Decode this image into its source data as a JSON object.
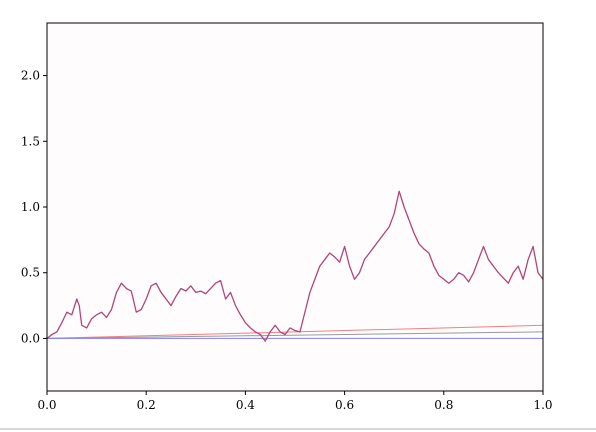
{
  "chart_data": {
    "type": "line",
    "title": "",
    "xlabel": "",
    "ylabel": "",
    "xlim": [
      0.0,
      1.0
    ],
    "ylim": [
      -0.4,
      2.4
    ],
    "grid": false,
    "x_ticks": [
      "0.0",
      "0.2",
      "0.4",
      "0.6",
      "0.8",
      "1.0"
    ],
    "y_ticks": [
      "0.0",
      "0.5",
      "1.0",
      "1.5",
      "2.0"
    ],
    "colors": {
      "background": "#fffcfd",
      "path": "#b0457a",
      "upper": "#f08080",
      "middle": "#999999",
      "lower": "#8080f0"
    },
    "series": [
      {
        "color": "#b0457a",
        "x": [
          0.0,
          0.01,
          0.02,
          0.03,
          0.04,
          0.05,
          0.06,
          0.065,
          0.07,
          0.08,
          0.09,
          0.1,
          0.11,
          0.12,
          0.13,
          0.14,
          0.15,
          0.16,
          0.17,
          0.18,
          0.19,
          0.2,
          0.21,
          0.22,
          0.23,
          0.24,
          0.25,
          0.26,
          0.27,
          0.28,
          0.29,
          0.3,
          0.31,
          0.32,
          0.33,
          0.34,
          0.35,
          0.36,
          0.37,
          0.38,
          0.39,
          0.4,
          0.41,
          0.42,
          0.43,
          0.44,
          0.45,
          0.46,
          0.47,
          0.48,
          0.49,
          0.5,
          0.51,
          0.52,
          0.53,
          0.54,
          0.55,
          0.56,
          0.57,
          0.58,
          0.59,
          0.6,
          0.61,
          0.62,
          0.63,
          0.64,
          0.65,
          0.66,
          0.67,
          0.68,
          0.69,
          0.7,
          0.71,
          0.72,
          0.73,
          0.74,
          0.75,
          0.76,
          0.77,
          0.78,
          0.79,
          0.8,
          0.81,
          0.82,
          0.83,
          0.84,
          0.85,
          0.86,
          0.87,
          0.88,
          0.89,
          0.9,
          0.91,
          0.92,
          0.93,
          0.94,
          0.95,
          0.96,
          0.97,
          0.98,
          0.99,
          1.0
        ],
        "y": [
          0.0,
          0.03,
          0.05,
          0.12,
          0.2,
          0.18,
          0.3,
          0.25,
          0.1,
          0.08,
          0.15,
          0.18,
          0.2,
          0.16,
          0.22,
          0.35,
          0.42,
          0.38,
          0.36,
          0.2,
          0.22,
          0.3,
          0.4,
          0.42,
          0.35,
          0.3,
          0.25,
          0.32,
          0.38,
          0.36,
          0.4,
          0.35,
          0.36,
          0.34,
          0.38,
          0.42,
          0.44,
          0.3,
          0.35,
          0.25,
          0.18,
          0.12,
          0.08,
          0.05,
          0.03,
          -0.02,
          0.05,
          0.1,
          0.05,
          0.03,
          0.08,
          0.06,
          0.05,
          0.2,
          0.35,
          0.45,
          0.55,
          0.6,
          0.65,
          0.62,
          0.58,
          0.7,
          0.55,
          0.45,
          0.5,
          0.6,
          0.65,
          0.7,
          0.75,
          0.8,
          0.85,
          0.95,
          1.12,
          1.0,
          0.9,
          0.8,
          0.72,
          0.68,
          0.65,
          0.55,
          0.48,
          0.45,
          0.42,
          0.45,
          0.5,
          0.48,
          0.43,
          0.5,
          0.6,
          0.7,
          0.6,
          0.55,
          0.5,
          0.46,
          0.42,
          0.5,
          0.55,
          0.45,
          0.6,
          0.7,
          0.5,
          0.45
        ]
      },
      {
        "color": "#f08080",
        "x": [
          0.0,
          1.0
        ],
        "y": [
          0.0,
          0.1
        ]
      },
      {
        "color": "#999999",
        "x": [
          0.0,
          1.0
        ],
        "y": [
          0.0,
          0.05
        ]
      },
      {
        "color": "#8080f0",
        "x": [
          0.0,
          1.0
        ],
        "y": [
          0.0,
          0.0
        ]
      }
    ]
  }
}
